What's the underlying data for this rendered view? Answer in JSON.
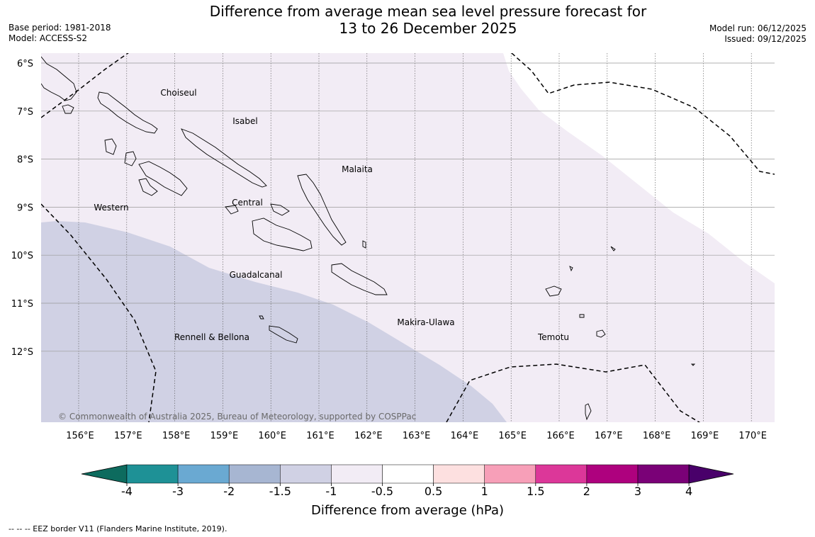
{
  "header": {
    "title_line1": "Difference from average mean sea level pressure forecast for",
    "title_line2": "13 to 26 December 2025",
    "base_period": "Base period: 1981-2018",
    "model": "Model: ACCESS-S2",
    "model_run": "Model run: 06/12/2025",
    "issued": "Issued: 09/12/2025"
  },
  "map": {
    "region": "Solomon Islands",
    "lon_labels": [
      "156°E",
      "157°E",
      "158°E",
      "159°E",
      "160°E",
      "161°E",
      "162°E",
      "163°E",
      "164°E",
      "165°E",
      "166°E",
      "167°E",
      "168°E",
      "169°E",
      "170°E"
    ],
    "lat_labels": [
      "6°S",
      "7°S",
      "8°S",
      "9°S",
      "10°S",
      "11°S",
      "12°S"
    ],
    "province_labels": [
      "Choiseul",
      "Isabel",
      "Malaita",
      "Western",
      "Central",
      "Guadalcanal",
      "Makira-Ulawa",
      "Rennell & Bellona",
      "Temotu"
    ],
    "copyright": "© Commonwealth of Australia 2025, Bureau of Meteorology, supported by COSPPac"
  },
  "legend": {
    "colors": [
      "#0d6b5e",
      "#1e9196",
      "#6aa9d2",
      "#a7b6d2",
      "#d0d1e4",
      "#f2ecf5",
      "#ffffff",
      "#fde0e0",
      "#f79fb8",
      "#dc3799",
      "#ae017e",
      "#7a0177",
      "#49006a"
    ],
    "tick_labels": [
      "-4",
      "-3",
      "-2",
      "-1.5",
      "-1",
      "-0.5",
      "0.5",
      "1",
      "1.5",
      "2",
      "3",
      "4"
    ],
    "label": "Difference from average (hPa)"
  },
  "footnote": "--  --  -- EEZ border V11 (Flanders Marine Institute, 2019)."
}
